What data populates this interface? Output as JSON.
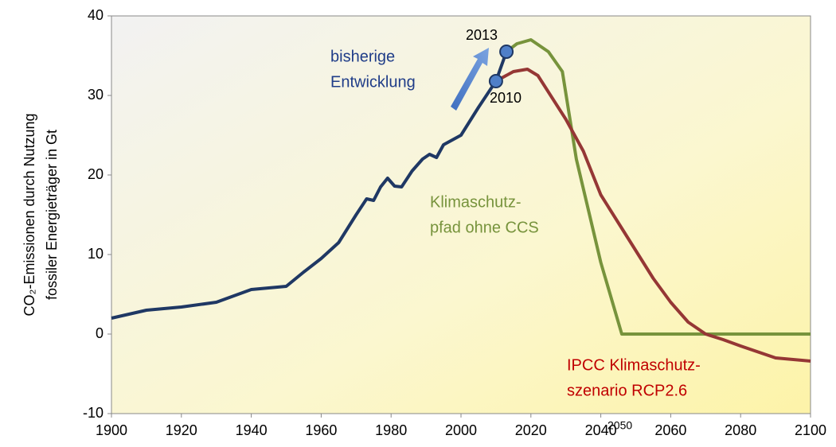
{
  "chart_data": {
    "type": "line",
    "ylabel": [
      "CO₂-Emissionen durch Nutzung",
      "fossiler Energieträger in Gt"
    ],
    "xlim": [
      1900,
      2100
    ],
    "xticks": [
      1900,
      1920,
      1940,
      1960,
      1980,
      2000,
      2020,
      2040,
      2060,
      2080,
      2100
    ],
    "ylim": [
      -10,
      40
    ],
    "yticks": [
      -10,
      0,
      10,
      20,
      30,
      40
    ],
    "grid": false,
    "annotations": [
      "bisherige",
      "Entwicklung",
      "2013",
      "2010",
      "2050"
    ],
    "series": [
      {
        "label": [
          "bisherige",
          "Entwicklung"
        ],
        "color": "#1f3864",
        "x": [
          1900,
          1910,
          1920,
          1930,
          1940,
          1945,
          1950,
          1955,
          1960,
          1965,
          1970,
          1973,
          1975,
          1977,
          1979,
          1981,
          1983,
          1986,
          1989,
          1991,
          1993,
          1995,
          2000,
          2005,
          2010,
          2013
        ],
        "values": [
          2.0,
          3.0,
          3.4,
          4.0,
          5.6,
          5.8,
          6.0,
          7.8,
          9.5,
          11.5,
          15,
          17,
          16.8,
          18.5,
          19.6,
          18.6,
          18.5,
          20.5,
          22,
          22.6,
          22.2,
          23.8,
          25,
          28.5,
          31.8,
          35.5
        ]
      },
      {
        "label": [
          "Klimaschutz-",
          "pfad ohne CCS"
        ],
        "color": "#77933c",
        "x": [
          2013,
          2016,
          2020,
          2025,
          2029,
          2033,
          2040,
          2046,
          2100
        ],
        "values": [
          35.5,
          36.5,
          37,
          35.5,
          33,
          22,
          9,
          0,
          0
        ]
      },
      {
        "label": [
          "IPCC Klimaschutz-",
          "szenario RCP2.6"
        ],
        "color": "#953735",
        "x": [
          2010,
          2015,
          2019,
          2022,
          2030,
          2035,
          2040,
          2045,
          2050,
          2055,
          2060,
          2065,
          2070,
          2075,
          2080,
          2090,
          2100
        ],
        "values": [
          31.8,
          33,
          33.3,
          32.5,
          27,
          23,
          17.5,
          14,
          10.5,
          7,
          4,
          1.5,
          0,
          -0.7,
          -1.5,
          -3,
          -3.4
        ]
      }
    ]
  }
}
